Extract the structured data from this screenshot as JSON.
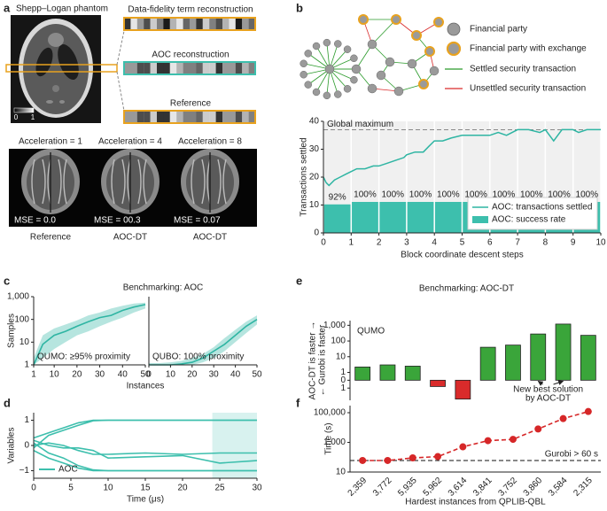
{
  "panel_labels": [
    "a",
    "b",
    "c",
    "d",
    "e",
    "f"
  ],
  "panel_a": {
    "phantom_title": "Shepp–Logan phantom",
    "colorbar_ticks": [
      0,
      1
    ],
    "strips": [
      "Data-fidelity term reconstruction",
      "AOC reconstruction",
      "Reference"
    ],
    "brain_titles": [
      "Acceleration = 1",
      "Acceleration = 4",
      "Acceleration = 8"
    ],
    "mse": [
      "MSE = 0.0",
      "MSE = 00.3",
      "MSE = 0.07"
    ],
    "brain_labels": [
      "Reference",
      "AOC-DT",
      "AOC-DT"
    ]
  },
  "panel_b_legend": [
    "Financial party",
    "Financial party with exchange",
    "Settled security transaction",
    "Unsettled security transaction"
  ],
  "chart_data": [
    {
      "type": "combo",
      "ylabel": "Transactions settled",
      "xlabel": "Block coordinate descent steps",
      "xlim": [
        0,
        10
      ],
      "xticks": [
        0,
        1,
        2,
        3,
        4,
        5,
        6,
        7,
        8,
        9,
        10
      ],
      "ylim": [
        0,
        40
      ],
      "yticks": [
        0,
        10,
        20,
        30,
        40
      ],
      "y2lim": [
        0,
        360
      ],
      "reference": {
        "value": 37,
        "label": "Global maximum"
      },
      "legend": "lower right",
      "line": {
        "name": "AOC: transactions settled",
        "color": "#2fb5a3",
        "x": [
          0,
          0.1,
          0.2,
          0.4,
          0.6,
          0.8,
          1.0,
          1.2,
          1.5,
          1.8,
          2.0,
          2.3,
          2.6,
          2.9,
          3.0,
          3.3,
          3.6,
          3.8,
          4.0,
          4.3,
          4.6,
          5.0,
          5.4,
          5.8,
          6.0,
          6.3,
          6.6,
          7.0,
          7.4,
          7.8,
          8.0,
          8.3,
          8.6,
          9.0,
          9.2,
          9.5,
          10
        ],
        "values": [
          20,
          18,
          17,
          19,
          20,
          21,
          22,
          23,
          23,
          24,
          24,
          25,
          26,
          27,
          28,
          29,
          29,
          31,
          33,
          33,
          34,
          35,
          35,
          35,
          35,
          36,
          35,
          37,
          37,
          36,
          37,
          33,
          37,
          37,
          36,
          37,
          37
        ]
      },
      "bars": {
        "name": "AOC: success rate",
        "color": "#3dbfad",
        "axis": "y2",
        "bins": [
          0,
          1,
          2,
          3,
          4,
          5,
          6,
          7,
          8,
          9,
          10
        ],
        "values": [
          92,
          100,
          100,
          100,
          100,
          100,
          100,
          100,
          100,
          100
        ],
        "value_labels": [
          "92%",
          "100%",
          "100%",
          "100%",
          "100%",
          "100%",
          "100%",
          "100%",
          "100%",
          "100%"
        ]
      }
    },
    {
      "type": "line",
      "title": "Benchmarking: AOC",
      "ylabel": "Samples",
      "xlabel": "Instances",
      "annotation": "QUMO: ≥95% proximity",
      "log_y": true,
      "color": "#2fb5a3",
      "xlim": [
        1,
        50
      ],
      "xticks": [
        1,
        10,
        20,
        30,
        40,
        50
      ],
      "ylim": [
        1,
        1000
      ],
      "yticks": [
        1,
        10,
        100,
        {
          "value": 1000,
          "label": "1,000"
        }
      ],
      "x": [
        1,
        5,
        10,
        15,
        20,
        25,
        30,
        35,
        40,
        45,
        50
      ],
      "values": [
        1,
        8,
        20,
        30,
        50,
        80,
        120,
        150,
        250,
        350,
        450
      ],
      "lower": [
        1,
        2,
        5,
        10,
        20,
        30,
        50,
        80,
        120,
        200,
        300
      ],
      "upper": [
        2,
        20,
        40,
        60,
        90,
        150,
        200,
        300,
        400,
        500,
        550
      ]
    },
    {
      "type": "line",
      "annotation": "QUBO: 100% proximity",
      "log_y": true,
      "color": "#2fb5a3",
      "xlim": [
        0,
        50
      ],
      "xticks": [
        0,
        10,
        20,
        30,
        40,
        50
      ],
      "ylim": [
        1,
        1000
      ],
      "x": [
        0,
        5,
        10,
        15,
        20,
        25,
        30,
        35,
        40,
        45,
        50
      ],
      "values": [
        1,
        1,
        1,
        1.1,
        1.3,
        2,
        4,
        8,
        20,
        50,
        100
      ],
      "lower": [
        1,
        1,
        1,
        1,
        1,
        1.3,
        2,
        4,
        10,
        25,
        60
      ],
      "upper": [
        1.2,
        1.2,
        1.3,
        1.5,
        2,
        3,
        6,
        15,
        35,
        80,
        150
      ]
    },
    {
      "type": "line",
      "ylabel": "Variables",
      "xlabel": "Time (μs)",
      "legend_label": "AOC",
      "legend": "lower left",
      "color": "#3dbfad",
      "highlight": [
        24,
        30
      ],
      "xlim": [
        0,
        30
      ],
      "xticks": [
        0,
        5,
        10,
        15,
        20,
        25,
        30
      ],
      "ylim": [
        -1.3,
        1.3
      ],
      "yticks": [
        {
          "value": -1,
          "label": "−1"
        },
        0,
        1
      ],
      "x": [
        0,
        2,
        4,
        6,
        8,
        10,
        15,
        20,
        25,
        30
      ],
      "series": [
        {
          "values": [
            0.3,
            0.5,
            0.7,
            0.9,
            1,
            1,
            1,
            1,
            1,
            1
          ]
        },
        {
          "values": [
            -0.1,
            0.4,
            0.6,
            0.8,
            0.98,
            1,
            1,
            1,
            1,
            1
          ]
        },
        {
          "values": [
            0.1,
            -0.3,
            -0.5,
            -0.8,
            -0.97,
            -1,
            -1,
            -1,
            -1,
            -1
          ]
        },
        {
          "values": [
            -0.2,
            -0.5,
            -0.7,
            -0.9,
            -1,
            -1,
            -1,
            -1,
            -1,
            -1
          ]
        },
        {
          "values": [
            0,
            0.1,
            0,
            -0.2,
            -0.35,
            -0.35,
            -0.3,
            -0.35,
            -0.3,
            -0.3
          ]
        },
        {
          "values": [
            0.2,
            0,
            -0.1,
            -0.1,
            -0.2,
            -0.5,
            -0.45,
            -0.4,
            -0.7,
            -0.6
          ]
        }
      ]
    },
    {
      "type": "bar",
      "title": "Benchmarking: AOC-DT",
      "annotation": "QUMO",
      "ylabel": [
        "AOC-DT is faster →",
        "← Gurobi is faster"
      ],
      "note": [
        "New best solution",
        "by AOC-DT"
      ],
      "scale": "symlog",
      "color_positive": "#3aa53a",
      "color_negative": "#d92b2b",
      "ylim": [
        -6,
        2000
      ],
      "yticks": [
        {
          "value": 1000,
          "label": "1,000"
        },
        100,
        10,
        1,
        0,
        {
          "value": -1,
          "label": "1"
        }
      ],
      "values": [
        2.2,
        3,
        2.5,
        -0.8,
        -5,
        40,
        55,
        280,
        1200,
        230
      ]
    },
    {
      "type": "line",
      "ylabel": "Time (s)",
      "xlabel": "Hardest instances from QPLIB-QBL",
      "log_y": true,
      "color": "#d62728",
      "categories": [
        "2,359",
        "3,772",
        "5,935",
        "5,962",
        "3,614",
        "3,841",
        "3,752",
        "3,860",
        "3,584",
        "2,315"
      ],
      "values": [
        60,
        60,
        90,
        110,
        500,
        1300,
        1600,
        8000,
        40000,
        120000
      ],
      "ylim": [
        10,
        300000
      ],
      "yticks": [
        10,
        {
          "value": 1000,
          "label": "1,000"
        },
        {
          "value": 100000,
          "label": "100,000"
        }
      ],
      "reference": {
        "value": 60,
        "label": "Gurobi > 60 s"
      }
    }
  ]
}
